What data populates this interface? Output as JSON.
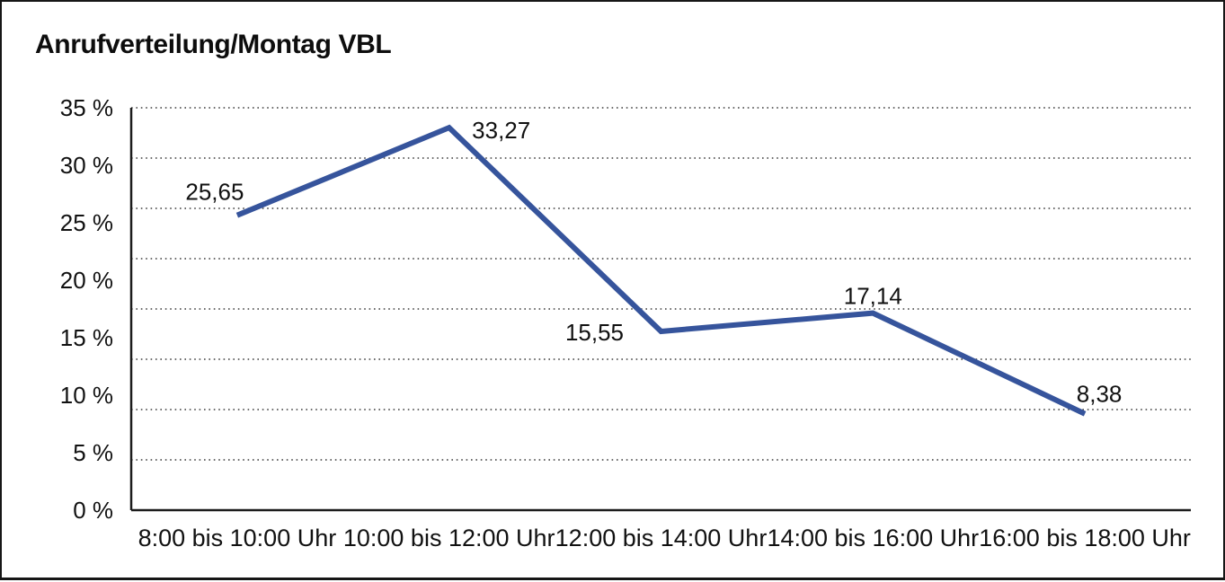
{
  "frame": {
    "background": "#FFFFFF",
    "border_color": "#161616"
  },
  "chart_data": {
    "type": "line",
    "title": "Anrufverteilung/Montag VBL",
    "categories": [
      "8:00 bis 10:00 Uhr",
      "10:00 bis 12:00 Uhr",
      "12:00 bis 14:00 Uhr",
      "14:00 bis 16:00 Uhr",
      "16:00 bis 18:00 Uhr"
    ],
    "values": [
      25.65,
      33.27,
      15.55,
      17.14,
      8.38
    ],
    "point_labels": [
      {
        "text": "25,65",
        "position": "above-left"
      },
      {
        "text": "33,27",
        "position": "right"
      },
      {
        "text": "15,55",
        "position": "left"
      },
      {
        "text": "17,14",
        "position": "above"
      },
      {
        "text": "8,38",
        "position": "above-right"
      }
    ],
    "xlabel": "",
    "ylabel": "",
    "ylim": [
      0,
      35
    ],
    "y_ticks": [
      {
        "value": 35,
        "label": "35 %"
      },
      {
        "value": 30,
        "label": "30 %"
      },
      {
        "value": 25,
        "label": "25 %"
      },
      {
        "value": 20,
        "label": "20 %"
      },
      {
        "value": 15,
        "label": "15 %"
      },
      {
        "value": 10,
        "label": "10 %"
      },
      {
        "value": 5,
        "label": "5 %"
      },
      {
        "value": 0,
        "label": "0 %"
      }
    ],
    "grid": {
      "horizontal_divisions": 8,
      "style": "dotted",
      "color": "#3C3C3C"
    },
    "axis_color": "#1C1C1C",
    "text_color": "#111111",
    "legend": "none",
    "marker": "none",
    "series_color": "#36549C",
    "line_width": 6
  }
}
